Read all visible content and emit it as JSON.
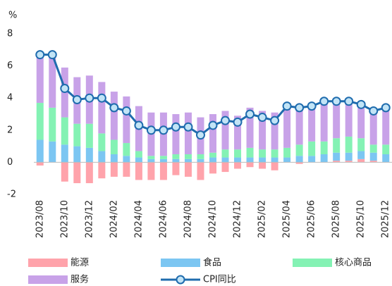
{
  "chart_data": {
    "type": "bar",
    "stacked": true,
    "y_unit": "%",
    "categories": [
      "2023/08",
      null,
      "2023/10",
      null,
      "2023/12",
      null,
      "2024/02",
      null,
      "2024/04",
      null,
      "2024/06",
      null,
      "2024/08",
      null,
      "2024/10",
      null,
      "2024/12",
      null,
      "2025/02",
      null,
      "2025/04",
      null,
      "2025/06",
      null,
      "2025/08",
      null,
      "2025/10",
      null,
      "2025/12"
    ],
    "series": [
      {
        "name": "能源",
        "color": "#ffa3ab",
        "values": [
          -0.2,
          0,
          -1.2,
          -1.3,
          -1.3,
          -1.0,
          -0.9,
          -0.9,
          -1.1,
          -1.1,
          -1.1,
          -0.8,
          -0.9,
          -1.1,
          -0.7,
          -0.6,
          -0.4,
          -0.3,
          -0.4,
          -0.5,
          0,
          -0.1,
          0,
          0,
          0.1,
          0.1,
          0.2,
          0.1,
          0
        ]
      },
      {
        "name": "食品",
        "color": "#7cc6f2",
        "values": [
          1.4,
          1.3,
          1.1,
          1.0,
          0.9,
          0.7,
          0.5,
          0.4,
          0.3,
          0.2,
          0.2,
          0.2,
          0.2,
          0.2,
          0.3,
          0.3,
          0.3,
          0.3,
          0.3,
          0.3,
          0.3,
          0.4,
          0.4,
          0.5,
          0.5,
          0.5,
          0.5,
          0.5,
          0.5
        ]
      },
      {
        "name": "核心商品",
        "color": "#84f2b4",
        "values": [
          2.3,
          2.1,
          1.7,
          1.4,
          1.5,
          1.1,
          0.9,
          0.8,
          0.4,
          0.2,
          0.2,
          0.3,
          0.3,
          0.3,
          0.3,
          0.5,
          0.5,
          0.6,
          0.5,
          0.5,
          0.6,
          0.7,
          0.9,
          0.8,
          0.9,
          1.0,
          0.8,
          0.5,
          0.6
        ]
      },
      {
        "name": "服务",
        "color": "#c8a2e8",
        "values": [
          3.0,
          3.2,
          3.1,
          2.9,
          3.0,
          3.2,
          3.0,
          2.9,
          2.8,
          2.7,
          2.7,
          2.5,
          2.6,
          2.3,
          2.4,
          2.4,
          2.1,
          2.5,
          2.4,
          2.3,
          2.6,
          2.3,
          2.3,
          2.5,
          2.4,
          2.3,
          2.3,
          2.2,
          2.2
        ]
      },
      {
        "name": "CPI同比",
        "type": "line",
        "color": "#1f6cae",
        "marker_color": "#c2e4f6",
        "values": [
          6.7,
          6.7,
          4.6,
          3.9,
          4.0,
          4.0,
          3.4,
          3.2,
          2.3,
          2.0,
          2.0,
          2.2,
          2.2,
          1.7,
          2.3,
          2.6,
          2.5,
          3.0,
          2.8,
          2.6,
          3.5,
          3.4,
          3.5,
          3.8,
          3.8,
          3.8,
          3.6,
          3.2,
          3.4
        ]
      }
    ],
    "ylim": [
      -2,
      8
    ],
    "yticks": [
      8,
      6,
      4,
      2,
      0,
      -2
    ],
    "grid": false
  }
}
